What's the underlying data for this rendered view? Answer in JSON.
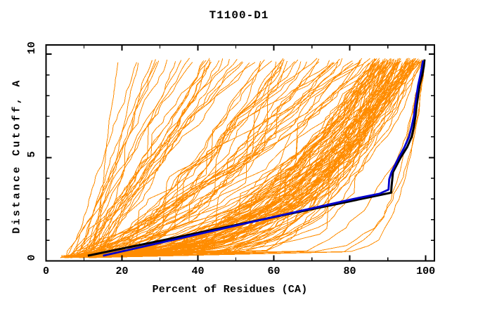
{
  "chart_data": {
    "type": "line",
    "title": "T1100-D1",
    "xlabel": "Percent of Residues (CA)",
    "ylabel": "Distance Cutoff, A",
    "xlim": [
      0,
      102.3
    ],
    "ylim": [
      0,
      10.45
    ],
    "x_major_ticks": [
      0,
      20,
      40,
      60,
      80,
      100
    ],
    "x_minor_ticks": [
      10,
      30,
      50,
      70,
      90
    ],
    "y_major_ticks": [
      0,
      5,
      10
    ],
    "y_minor_ticks": [
      1,
      2,
      3,
      4,
      6,
      7,
      8,
      9
    ],
    "grid": false,
    "legend": "none",
    "colors": {
      "model_lines": "#FF8C00",
      "black_curve": "#000000",
      "blue_curve": "#0000CD",
      "frame": "#000000",
      "background": "#FFFFFF"
    },
    "series": [
      {
        "name": "black-curve",
        "color_key": "black_curve",
        "width": 3,
        "points_cutoff_percent": [
          [
            0.25,
            11.0
          ],
          [
            1.0,
            30.7
          ],
          [
            1.5,
            43.8
          ],
          [
            2.0,
            56.9
          ],
          [
            2.5,
            70.0
          ],
          [
            3.0,
            83.1
          ],
          [
            3.3,
            90.9
          ],
          [
            3.6,
            91.0
          ],
          [
            4.3,
            91.4
          ],
          [
            5.0,
            93.4
          ],
          [
            5.5,
            95.1
          ],
          [
            6.0,
            96.3
          ],
          [
            6.5,
            96.9
          ],
          [
            7.0,
            97.3
          ],
          [
            7.5,
            97.6
          ],
          [
            8.0,
            98.0
          ],
          [
            8.5,
            98.4
          ],
          [
            9.0,
            99.1
          ],
          [
            9.4,
            99.5
          ],
          [
            9.75,
            99.7
          ]
        ]
      },
      {
        "name": "blue-curve",
        "color_key": "blue_curve",
        "width": 2.8,
        "points_cutoff_percent": [
          [
            0.25,
            15.0
          ],
          [
            1.0,
            33.0
          ],
          [
            2.0,
            57.0
          ],
          [
            3.0,
            81.0
          ],
          [
            3.25,
            87.8
          ],
          [
            3.45,
            90.2
          ],
          [
            3.95,
            90.4
          ],
          [
            4.3,
            91.0
          ],
          [
            5.0,
            92.9
          ],
          [
            5.5,
            94.4
          ],
          [
            6.0,
            95.6
          ],
          [
            6.5,
            96.3
          ],
          [
            7.0,
            96.9
          ],
          [
            7.5,
            97.2
          ],
          [
            8.0,
            97.6
          ],
          [
            8.5,
            98.0
          ],
          [
            9.0,
            98.6
          ],
          [
            9.4,
            99.0
          ],
          [
            9.7,
            99.3
          ]
        ]
      }
    ],
    "model_lines": {
      "description": "ensemble of per-model cumulative curves",
      "count": 153,
      "color_key": "model_lines",
      "seed": 1100,
      "cutoff_start": 0.2,
      "cutoff_end": 9.7,
      "steps": 34,
      "start_percent_range": [
        3.8,
        14
      ],
      "groups": [
        {
          "name": "top-models",
          "count": 4,
          "end_range": [
            99.3,
            99.8
          ],
          "p_range": [
            0.06,
            0.12
          ],
          "plateau_prob": 0.0
        },
        {
          "name": "good-models",
          "count": 88,
          "end_range": [
            86,
            99.2
          ],
          "p_range": [
            0.22,
            0.5
          ],
          "plateau_prob": 0.25
        },
        {
          "name": "medium-models",
          "count": 34,
          "end_range": [
            56,
            86
          ],
          "p_range": [
            0.5,
            0.85
          ],
          "plateau_prob": 0.3
        },
        {
          "name": "poor-models",
          "count": 27,
          "end_range": [
            17,
            56
          ],
          "p_range": [
            0.82,
            1.1
          ],
          "plateau_prob": 0.15
        }
      ]
    }
  }
}
